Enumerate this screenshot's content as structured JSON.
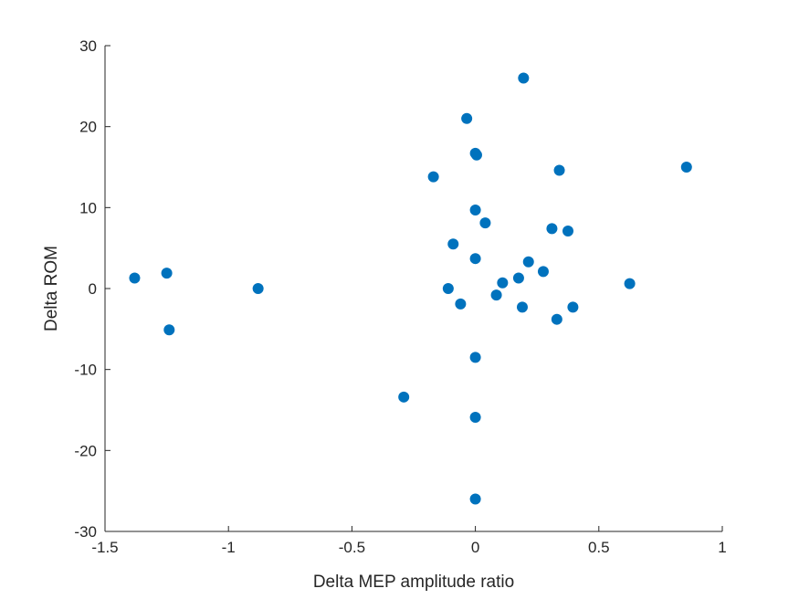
{
  "chart_data": {
    "type": "scatter",
    "title": "",
    "xlabel": "Delta MEP amplitude ratio",
    "ylabel": "Delta ROM",
    "xlim": [
      -1.5,
      1
    ],
    "ylim": [
      -30,
      30
    ],
    "xticks": [
      -1.5,
      -1,
      -0.5,
      0,
      0.5,
      1
    ],
    "yticks": [
      -30,
      -20,
      -10,
      0,
      10,
      20,
      30
    ],
    "xtick_labels": [
      "-1.5",
      "-1",
      "-0.5",
      "0",
      "0.5",
      "1"
    ],
    "ytick_labels": [
      "-30",
      "-20",
      "-10",
      "0",
      "10",
      "20",
      "30"
    ],
    "grid": false,
    "marker_color": "#0072BD",
    "axis_color": "#262626",
    "series": [
      {
        "x": [
          -1.38,
          -1.25,
          -1.24,
          -0.88,
          -0.29,
          -0.17,
          -0.11,
          -0.09,
          -0.06,
          -0.035,
          0.0,
          0.0,
          0.0,
          0.0,
          0.005,
          0.0,
          0.0,
          0.04,
          0.085,
          0.11,
          0.175,
          0.19,
          0.195,
          0.215,
          0.275,
          0.31,
          0.33,
          0.34,
          0.375,
          0.395,
          0.625,
          0.855
        ],
        "y": [
          1.3,
          1.9,
          -5.1,
          0.0,
          -13.4,
          13.8,
          0.0,
          5.5,
          -1.9,
          21.0,
          16.7,
          9.7,
          3.7,
          -8.5,
          16.5,
          -15.9,
          -26.0,
          8.1,
          -0.8,
          0.7,
          1.3,
          -2.3,
          26.0,
          3.3,
          2.1,
          7.4,
          -3.8,
          14.6,
          7.1,
          -2.3,
          0.6,
          15.0
        ]
      }
    ]
  }
}
